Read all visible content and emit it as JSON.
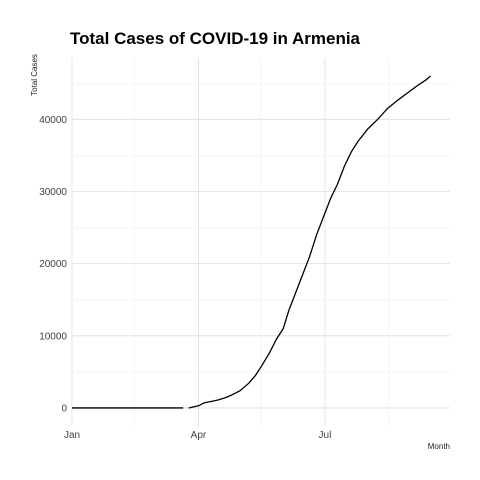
{
  "chart_data": {
    "type": "line",
    "title": "Total Cases of COVID-19 in Armenia",
    "xlabel": "Month",
    "ylabel": "Total Cases",
    "x_axis": "date",
    "xlim": [
      "2020-01-01",
      "2020-09-29"
    ],
    "ylim": [
      -2500,
      48500
    ],
    "x_ticks": [
      {
        "label": "Jan",
        "date": "2020-01-01"
      },
      {
        "label": "Apr",
        "date": "2020-04-01"
      },
      {
        "label": "Jul",
        "date": "2020-07-01"
      }
    ],
    "x_minor_ticks": [
      "2020-02-15",
      "2020-05-16",
      "2020-08-16"
    ],
    "y_ticks": [
      0,
      10000,
      20000,
      30000,
      40000
    ],
    "grid": true,
    "series": [
      {
        "color": "#000000",
        "segments": [
          [
            {
              "x": "2020-01-01",
              "y": 0
            },
            {
              "x": "2020-02-01",
              "y": 0
            },
            {
              "x": "2020-03-01",
              "y": 0
            },
            {
              "x": "2020-03-21",
              "y": 0
            }
          ],
          [
            {
              "x": "2020-03-25",
              "y": 0
            },
            {
              "x": "2020-04-01",
              "y": 300
            },
            {
              "x": "2020-04-05",
              "y": 700
            },
            {
              "x": "2020-04-10",
              "y": 900
            },
            {
              "x": "2020-04-15",
              "y": 1100
            },
            {
              "x": "2020-04-20",
              "y": 1400
            },
            {
              "x": "2020-04-25",
              "y": 1800
            },
            {
              "x": "2020-05-01",
              "y": 2400
            },
            {
              "x": "2020-05-07",
              "y": 3400
            },
            {
              "x": "2020-05-12",
              "y": 4500
            },
            {
              "x": "2020-05-17",
              "y": 6000
            },
            {
              "x": "2020-05-22",
              "y": 7600
            },
            {
              "x": "2020-05-27",
              "y": 9500
            },
            {
              "x": "2020-06-01",
              "y": 11000
            },
            {
              "x": "2020-06-05",
              "y": 13500
            },
            {
              "x": "2020-06-10",
              "y": 16000
            },
            {
              "x": "2020-06-15",
              "y": 18500
            },
            {
              "x": "2020-06-20",
              "y": 21000
            },
            {
              "x": "2020-06-25",
              "y": 24000
            },
            {
              "x": "2020-06-30",
              "y": 26500
            },
            {
              "x": "2020-07-05",
              "y": 29000
            },
            {
              "x": "2020-07-10",
              "y": 31000
            },
            {
              "x": "2020-07-15",
              "y": 33500
            },
            {
              "x": "2020-07-20",
              "y": 35500
            },
            {
              "x": "2020-07-25",
              "y": 37000
            },
            {
              "x": "2020-08-01",
              "y": 38700
            },
            {
              "x": "2020-08-08",
              "y": 40000
            },
            {
              "x": "2020-08-15",
              "y": 41500
            },
            {
              "x": "2020-08-22",
              "y": 42600
            },
            {
              "x": "2020-08-29",
              "y": 43600
            },
            {
              "x": "2020-09-05",
              "y": 44600
            },
            {
              "x": "2020-09-12",
              "y": 45500
            },
            {
              "x": "2020-09-15",
              "y": 46000
            }
          ]
        ]
      }
    ]
  }
}
